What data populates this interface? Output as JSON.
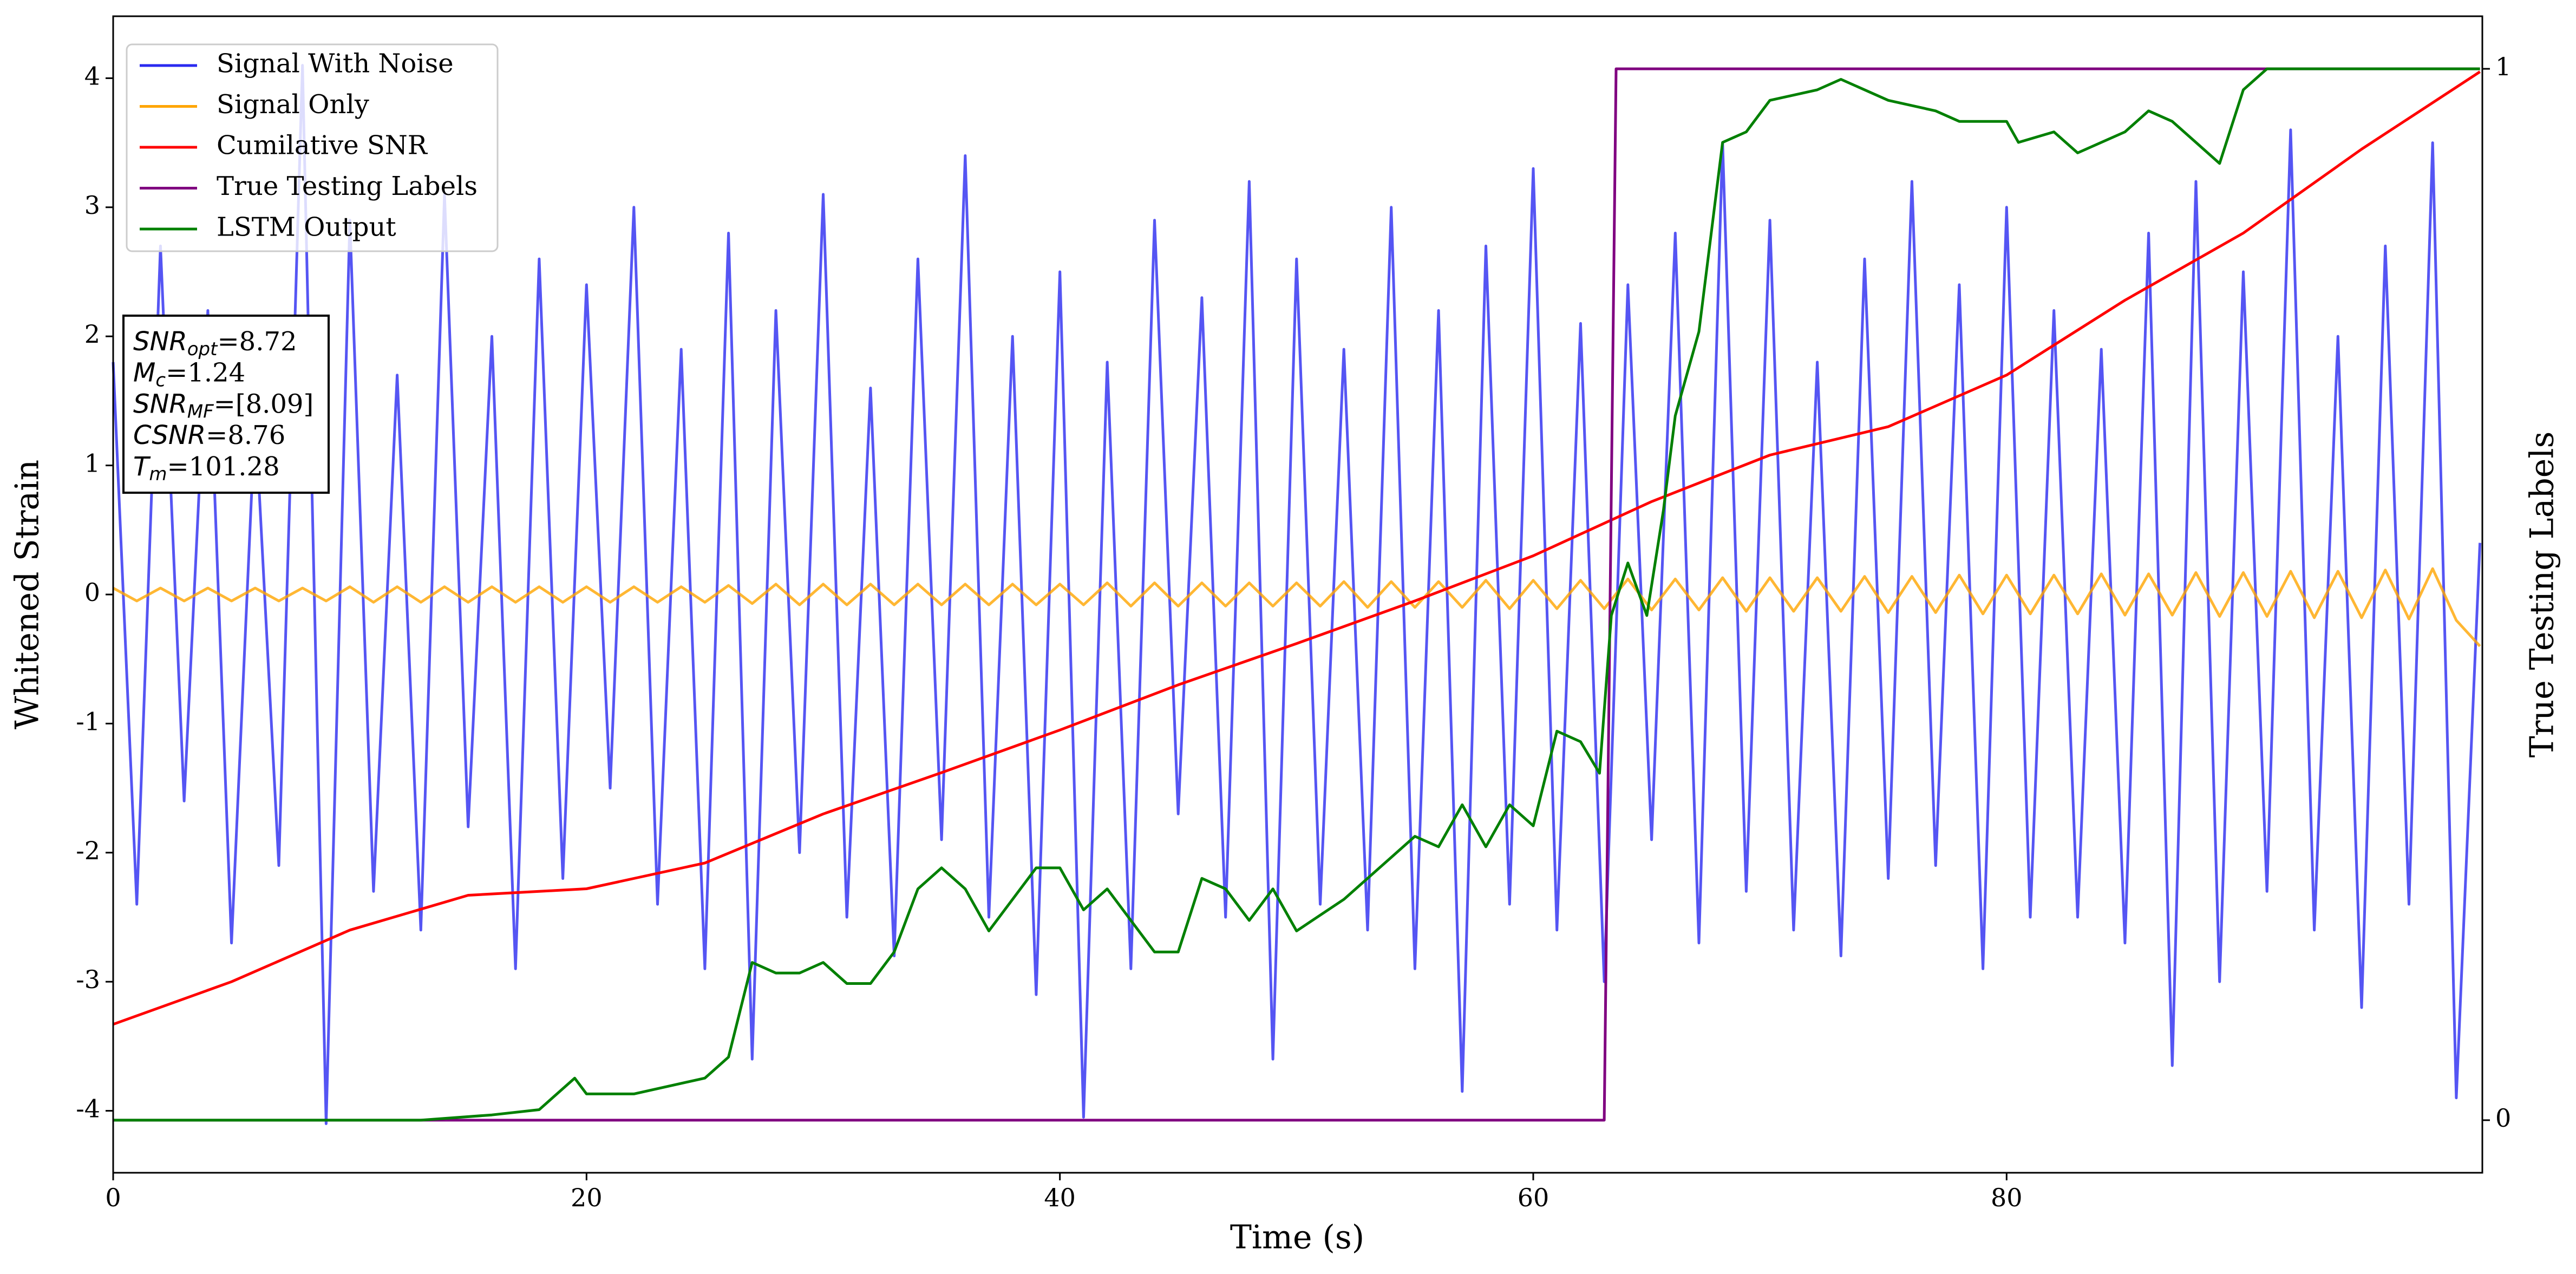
{
  "chart_data": {
    "type": "line",
    "xlabel": "Time (s)",
    "ylabel": "Whitened Strain",
    "y2label": "True Testing Labels",
    "xlim": [
      0,
      100.1
    ],
    "ylim": [
      -4.48,
      4.48
    ],
    "y2lim": [
      -0.05,
      1.05
    ],
    "xticks": [
      0,
      20,
      40,
      60,
      80
    ],
    "yticks": [
      -4,
      -3,
      -2,
      -1,
      0,
      1,
      2,
      3,
      4
    ],
    "y2ticks": [
      0,
      1
    ],
    "grid": false,
    "legend": "upper left",
    "x": [
      0,
      1,
      2,
      3,
      4,
      5,
      6,
      7,
      8,
      9,
      10,
      11,
      12,
      13,
      14,
      15,
      16,
      17,
      18,
      19,
      20,
      21,
      22,
      23,
      24,
      25,
      26,
      27,
      28,
      29,
      30,
      31,
      32,
      33,
      34,
      35,
      36,
      37,
      38,
      39,
      40,
      41,
      42,
      43,
      44,
      45,
      46,
      47,
      48,
      49,
      50,
      51,
      52,
      53,
      54,
      55,
      56,
      57,
      58,
      59,
      60,
      61,
      62,
      63,
      64,
      65,
      66,
      67,
      68,
      69,
      70,
      71,
      72,
      73,
      74,
      75,
      76,
      77,
      78,
      79,
      80,
      81,
      82,
      83,
      84,
      85,
      86,
      87,
      88,
      89,
      90,
      91,
      92,
      93,
      94,
      95,
      96,
      97,
      98,
      99,
      100
    ],
    "series": [
      {
        "name": "Signal With Noise",
        "color": "#2a2af0",
        "values": [
          1.8,
          -2.4,
          2.7,
          -1.6,
          2.2,
          -2.7,
          1.4,
          -2.1,
          4.1,
          -4.1,
          2.9,
          -2.3,
          1.7,
          -2.6,
          3.1,
          -1.8,
          2.0,
          -2.9,
          2.6,
          -2.2,
          2.4,
          -1.5,
          3.0,
          -2.4,
          1.9,
          -2.9,
          2.8,
          -3.6,
          2.2,
          -2.0,
          3.1,
          -2.5,
          1.6,
          -2.8,
          2.6,
          -1.9,
          3.4,
          -2.5,
          2.0,
          -3.1,
          2.5,
          -4.05,
          1.8,
          -2.9,
          2.9,
          -1.7,
          2.3,
          -2.5,
          3.2,
          -3.6,
          2.6,
          -2.4,
          1.9,
          -2.6,
          3.0,
          -2.9,
          2.2,
          -3.85,
          2.7,
          -2.4,
          3.3,
          -2.6,
          2.1,
          -3.0,
          2.4,
          -1.9,
          2.8,
          -2.7,
          3.5,
          -2.3,
          2.9,
          -2.6,
          1.8,
          -2.8,
          2.6,
          -2.2,
          3.2,
          -2.1,
          2.4,
          -2.9,
          3.0,
          -2.5,
          2.2,
          -2.5,
          1.9,
          -2.7,
          2.8,
          -3.65,
          3.2,
          -3.0,
          2.5,
          -2.3,
          3.6,
          -2.6,
          2.0,
          -3.2,
          2.7,
          -2.4,
          3.5,
          -3.9,
          0.4
        ]
      },
      {
        "name": "Signal Only",
        "color": "orange",
        "values": [
          0.05,
          -0.05,
          0.05,
          -0.05,
          0.05,
          -0.05,
          0.05,
          -0.05,
          0.05,
          -0.05,
          0.06,
          -0.06,
          0.06,
          -0.06,
          0.06,
          -0.06,
          0.06,
          -0.06,
          0.06,
          -0.06,
          0.06,
          -0.06,
          0.06,
          -0.06,
          0.06,
          -0.06,
          0.07,
          -0.07,
          0.08,
          -0.08,
          0.08,
          -0.08,
          0.08,
          -0.08,
          0.08,
          -0.08,
          0.08,
          -0.08,
          0.08,
          -0.08,
          0.08,
          -0.08,
          0.09,
          -0.09,
          0.09,
          -0.09,
          0.09,
          -0.09,
          0.09,
          -0.09,
          0.09,
          -0.09,
          0.1,
          -0.1,
          0.1,
          -0.1,
          0.1,
          -0.1,
          0.11,
          -0.11,
          0.11,
          -0.11,
          0.11,
          -0.11,
          0.12,
          -0.12,
          0.12,
          -0.12,
          0.13,
          -0.13,
          0.13,
          -0.13,
          0.13,
          -0.13,
          0.14,
          -0.14,
          0.14,
          -0.14,
          0.15,
          -0.15,
          0.15,
          -0.15,
          0.15,
          -0.15,
          0.16,
          -0.16,
          0.16,
          -0.16,
          0.17,
          -0.17,
          0.17,
          -0.17,
          0.18,
          -0.18,
          0.18,
          -0.18,
          0.19,
          -0.19,
          0.2,
          -0.2,
          -0.4
        ]
      },
      {
        "name": "Cumilative SNR",
        "color": "red",
        "x": [
          0,
          5,
          10,
          15,
          20,
          25,
          30,
          35,
          40,
          45,
          50,
          55,
          60,
          65,
          70,
          75,
          80,
          85,
          90,
          95,
          100
        ],
        "values": [
          -3.33,
          -3.0,
          -2.6,
          -2.33,
          -2.28,
          -2.08,
          -1.7,
          -1.38,
          -1.05,
          -0.7,
          -0.38,
          -0.05,
          0.3,
          0.72,
          1.08,
          1.3,
          1.7,
          2.28,
          2.8,
          3.45,
          4.05
        ]
      },
      {
        "name": "True Testing Labels",
        "color": "purple",
        "axis": "y2",
        "x": [
          0,
          63,
          63.5,
          100
        ],
        "values": [
          0,
          0,
          1,
          1
        ]
      },
      {
        "name": "LSTM Output",
        "color": "green",
        "axis": "y2",
        "x": [
          0,
          13,
          16,
          18,
          19.5,
          20,
          22,
          25,
          26,
          27,
          28,
          29,
          30,
          31,
          32,
          33,
          34,
          35,
          36,
          37,
          38,
          39,
          40,
          41,
          42,
          44,
          45,
          46,
          47,
          48,
          49,
          50,
          52,
          54,
          55,
          56,
          57,
          58,
          59,
          60,
          61,
          62,
          62.8,
          63.3,
          64,
          64.8,
          65.5,
          66,
          67,
          68,
          69,
          70,
          72,
          73,
          75,
          77,
          78,
          80,
          80.5,
          82,
          83,
          85,
          86,
          87,
          88,
          89,
          90,
          91,
          95,
          100
        ],
        "values": [
          0,
          0,
          0.005,
          0.01,
          0.04,
          0.025,
          0.025,
          0.04,
          0.06,
          0.15,
          0.14,
          0.14,
          0.15,
          0.13,
          0.13,
          0.16,
          0.22,
          0.24,
          0.22,
          0.18,
          0.21,
          0.24,
          0.24,
          0.2,
          0.22,
          0.16,
          0.16,
          0.23,
          0.22,
          0.19,
          0.22,
          0.18,
          0.21,
          0.25,
          0.27,
          0.26,
          0.3,
          0.26,
          0.3,
          0.28,
          0.37,
          0.36,
          0.33,
          0.48,
          0.53,
          0.48,
          0.58,
          0.67,
          0.75,
          0.93,
          0.94,
          0.97,
          0.98,
          0.99,
          0.97,
          0.96,
          0.95,
          0.95,
          0.93,
          0.94,
          0.92,
          0.94,
          0.96,
          0.95,
          0.93,
          0.91,
          0.98,
          1.0,
          1.0,
          1.0
        ]
      }
    ],
    "annotation": [
      {
        "symbol": "SNR",
        "subscript": "opt",
        "text": "=8.72"
      },
      {
        "symbol": "M",
        "subscript": "c",
        "text": "=1.24"
      },
      {
        "symbol": "SNR",
        "subscript": "MF",
        "text": "=[8.09]"
      },
      {
        "symbol": "CSNR",
        "text": "=8.76"
      },
      {
        "symbol": "T",
        "subscript": "m",
        "text": "=101.28"
      }
    ]
  }
}
